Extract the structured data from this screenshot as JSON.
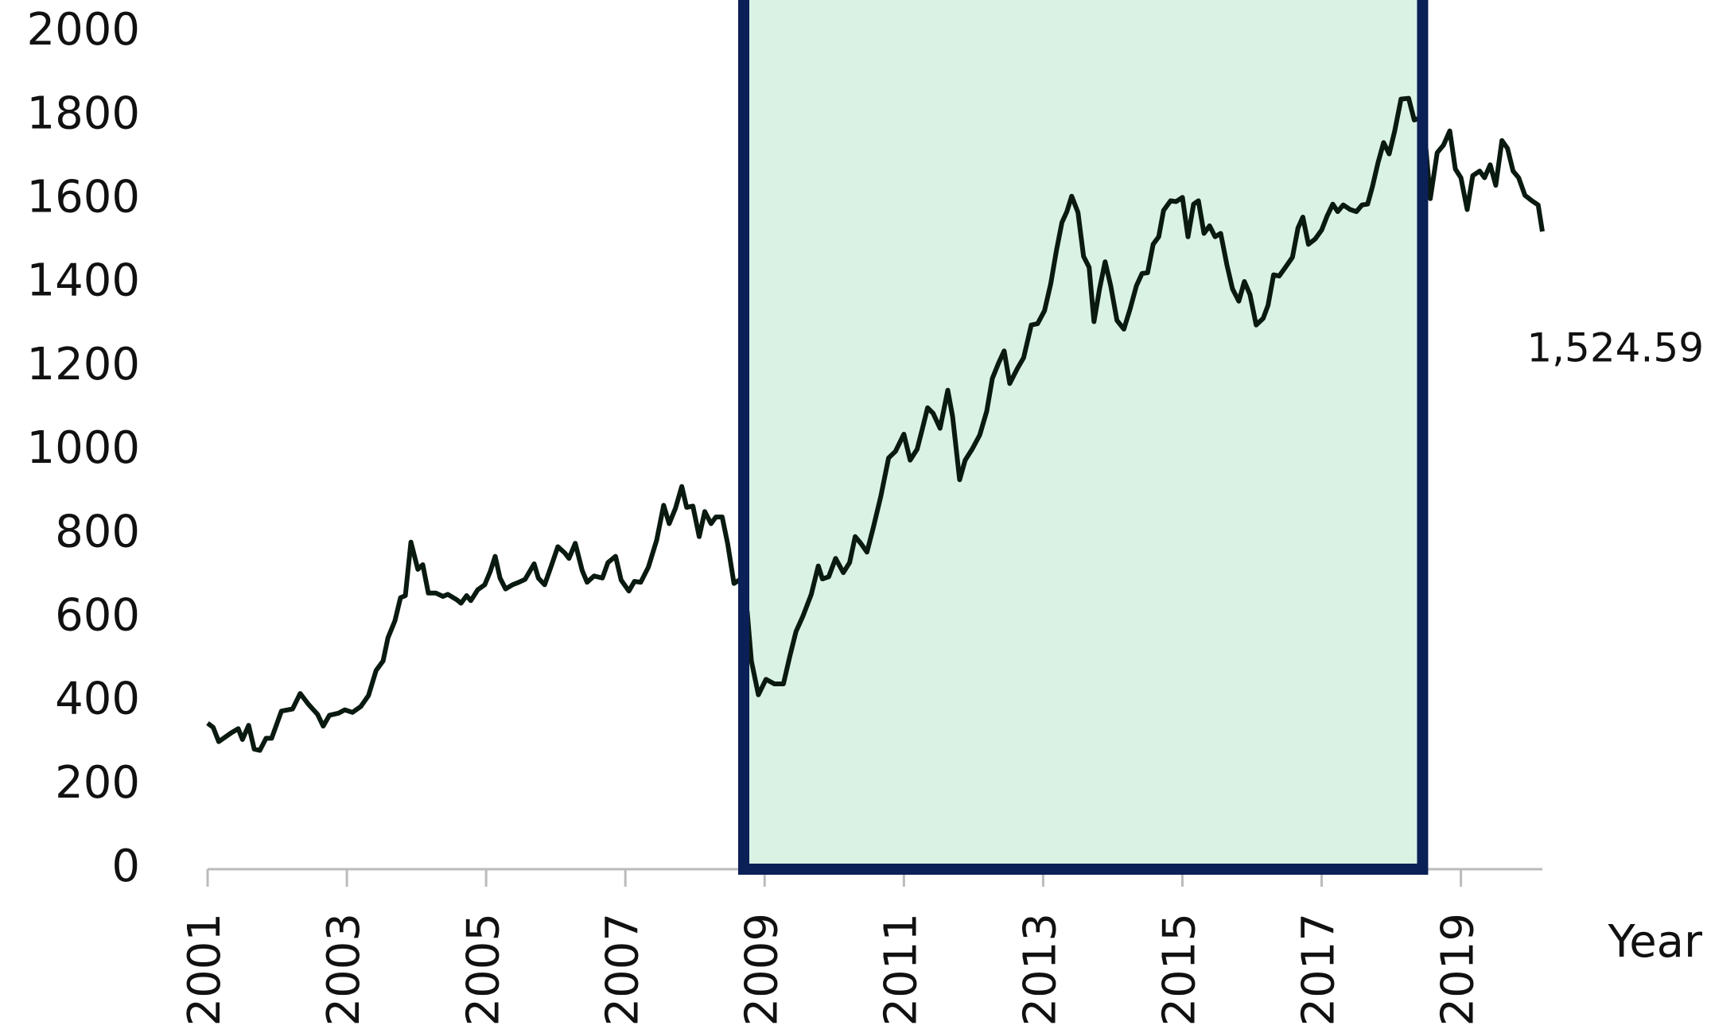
{
  "chart_data": {
    "type": "line",
    "x_label": "Year",
    "annotation": "1,524.59",
    "xlim": [
      2001,
      2020.17
    ],
    "ylim": [
      0,
      2000
    ],
    "xticks": [
      2001,
      2003,
      2005,
      2007,
      2009,
      2011,
      2013,
      2015,
      2017,
      2019
    ],
    "yticks": [
      0,
      200,
      400,
      600,
      800,
      1000,
      1200,
      1400,
      1600,
      1800,
      2000
    ],
    "grid": false,
    "highlight": {
      "x": [
        2008.7,
        2018.45
      ],
      "fill": "#d9f2e4",
      "border": "#0b2057"
    },
    "series": [
      {
        "color": "#0a1a10",
        "x": [
          2001.0,
          2001.08,
          2001.16,
          2001.34,
          2001.44,
          2001.5,
          2001.59,
          2001.67,
          2001.75,
          2001.84,
          2001.92,
          2002.06,
          2002.22,
          2002.33,
          2002.45,
          2002.58,
          2002.66,
          2002.75,
          2002.88,
          2002.97,
          2003.08,
          2003.2,
          2003.31,
          2003.42,
          2003.52,
          2003.59,
          2003.69,
          2003.77,
          2003.84,
          2003.92,
          2004.02,
          2004.09,
          2004.17,
          2004.28,
          2004.38,
          2004.45,
          2004.58,
          2004.64,
          2004.72,
          2004.78,
          2004.88,
          2004.98,
          2005.06,
          2005.13,
          2005.2,
          2005.28,
          2005.38,
          2005.47,
          2005.56,
          2005.69,
          2005.75,
          2005.84,
          2005.94,
          2006.03,
          2006.13,
          2006.19,
          2006.28,
          2006.38,
          2006.45,
          2006.55,
          2006.67,
          2006.75,
          2006.86,
          2006.94,
          2007.05,
          2007.13,
          2007.22,
          2007.33,
          2007.45,
          2007.55,
          2007.63,
          2007.72,
          2007.81,
          2007.88,
          2007.97,
          2008.06,
          2008.14,
          2008.23,
          2008.3,
          2008.39,
          2008.47,
          2008.56,
          2008.66,
          2008.75,
          2008.81,
          2008.91,
          2009.02,
          2009.14,
          2009.27,
          2009.36,
          2009.45,
          2009.55,
          2009.67,
          2009.77,
          2009.83,
          2009.92,
          2010.02,
          2010.13,
          2010.22,
          2010.3,
          2010.38,
          2010.47,
          2010.56,
          2010.67,
          2010.78,
          2010.88,
          2011.0,
          2011.09,
          2011.19,
          2011.27,
          2011.34,
          2011.42,
          2011.52,
          2011.63,
          2011.7,
          2011.8,
          2011.88,
          2011.98,
          2012.09,
          2012.19,
          2012.27,
          2012.36,
          2012.44,
          2012.52,
          2012.63,
          2012.72,
          2012.83,
          2012.92,
          2013.02,
          2013.11,
          2013.19,
          2013.27,
          2013.34,
          2013.41,
          2013.5,
          2013.58,
          2013.66,
          2013.73,
          2013.81,
          2013.89,
          2013.97,
          2014.06,
          2014.16,
          2014.25,
          2014.34,
          2014.42,
          2014.5,
          2014.58,
          2014.66,
          2014.73,
          2014.83,
          2014.91,
          2015.0,
          2015.08,
          2015.16,
          2015.23,
          2015.31,
          2015.39,
          2015.47,
          2015.55,
          2015.64,
          2015.72,
          2015.81,
          2015.89,
          2015.97,
          2016.06,
          2016.16,
          2016.23,
          2016.31,
          2016.39,
          2016.48,
          2016.58,
          2016.66,
          2016.73,
          2016.81,
          2016.91,
          2017.0,
          2017.08,
          2017.16,
          2017.23,
          2017.31,
          2017.41,
          2017.5,
          2017.58,
          2017.66,
          2017.73,
          2017.81,
          2017.89,
          2017.97,
          2018.05,
          2018.14,
          2018.25,
          2018.33,
          2018.41,
          2018.48,
          2018.56,
          2018.66,
          2018.75,
          2018.84,
          2018.92,
          2019.0,
          2019.09,
          2019.17,
          2019.27,
          2019.34,
          2019.42,
          2019.5,
          2019.59,
          2019.67,
          2019.75,
          2019.83,
          2019.92,
          2020.02,
          2020.11,
          2020.17
        ],
        "values": [
          349,
          339,
          305,
          326,
          336,
          310,
          344,
          287,
          284,
          313,
          313,
          378,
          383,
          420,
          394,
          370,
          342,
          368,
          373,
          381,
          375,
          389,
          415,
          475,
          498,
          553,
          594,
          649,
          654,
          782,
          717,
          728,
          660,
          660,
          652,
          657,
          644,
          636,
          654,
          642,
          668,
          680,
          712,
          748,
          696,
          670,
          680,
          686,
          693,
          730,
          696,
          680,
          727,
          771,
          756,
          743,
          779,
          714,
          686,
          701,
          696,
          733,
          748,
          691,
          665,
          688,
          686,
          722,
          787,
          870,
          826,
          863,
          915,
          865,
          868,
          795,
          855,
          826,
          842,
          842,
          777,
          683,
          694,
          615,
          498,
          417,
          454,
          443,
          443,
          508,
          568,
          605,
          657,
          725,
          694,
          699,
          743,
          709,
          733,
          795,
          779,
          758,
          816,
          892,
          983,
          999,
          1040,
          978,
          1004,
          1056,
          1103,
          1090,
          1054,
          1145,
          1082,
          931,
          978,
          1004,
          1038,
          1095,
          1173,
          1210,
          1239,
          1161,
          1197,
          1223,
          1301,
          1304,
          1335,
          1400,
          1478,
          1546,
          1572,
          1609,
          1570,
          1465,
          1439,
          1309,
          1387,
          1452,
          1395,
          1312,
          1291,
          1340,
          1395,
          1424,
          1426,
          1494,
          1512,
          1575,
          1598,
          1596,
          1606,
          1512,
          1590,
          1598,
          1520,
          1538,
          1512,
          1520,
          1444,
          1387,
          1358,
          1405,
          1374,
          1301,
          1317,
          1348,
          1421,
          1418,
          1439,
          1463,
          1533,
          1559,
          1494,
          1507,
          1528,
          1562,
          1590,
          1572,
          1588,
          1577,
          1572,
          1588,
          1590,
          1632,
          1689,
          1737,
          1710,
          1765,
          1841,
          1843,
          1791,
          1796,
          1755,
          1603,
          1713,
          1731,
          1765,
          1674,
          1653,
          1577,
          1658,
          1669,
          1653,
          1684,
          1635,
          1742,
          1723,
          1669,
          1653,
          1611,
          1598,
          1588,
          1524.59
        ]
      }
    ]
  }
}
